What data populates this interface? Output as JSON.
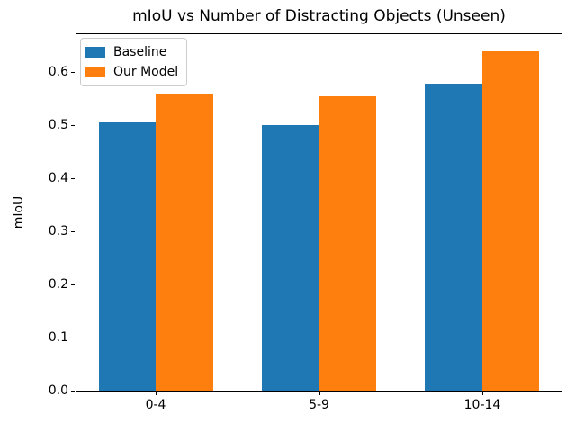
{
  "chart_data": {
    "type": "bar",
    "title": "mIoU vs Number of Distracting Objects (Unseen)",
    "xlabel": "",
    "ylabel": "mIoU",
    "categories": [
      "0-4",
      "5-9",
      "10-14"
    ],
    "series": [
      {
        "name": "Baseline",
        "color": "#1f77b4",
        "values": [
          0.505,
          0.5,
          0.578
        ]
      },
      {
        "name": "Our Model",
        "color": "#ff7f0e",
        "values": [
          0.558,
          0.555,
          0.64
        ]
      }
    ],
    "ylim": [
      0,
      0.672
    ],
    "xlim": [
      -0.485,
      2.485
    ],
    "yticks": [
      0.0,
      0.1,
      0.2,
      0.3,
      0.4,
      0.5,
      0.6
    ],
    "ytick_labels": [
      "0.0",
      "0.1",
      "0.2",
      "0.3",
      "0.4",
      "0.5",
      "0.6"
    ],
    "bar_width": 0.35,
    "grid": false,
    "legend": {
      "position": "upper left",
      "entries": [
        "Baseline",
        "Our Model"
      ]
    },
    "colors": {
      "background": "#ffffff",
      "spine": "#000000",
      "legend_border": "#cccccc",
      "text": "#000000"
    }
  }
}
